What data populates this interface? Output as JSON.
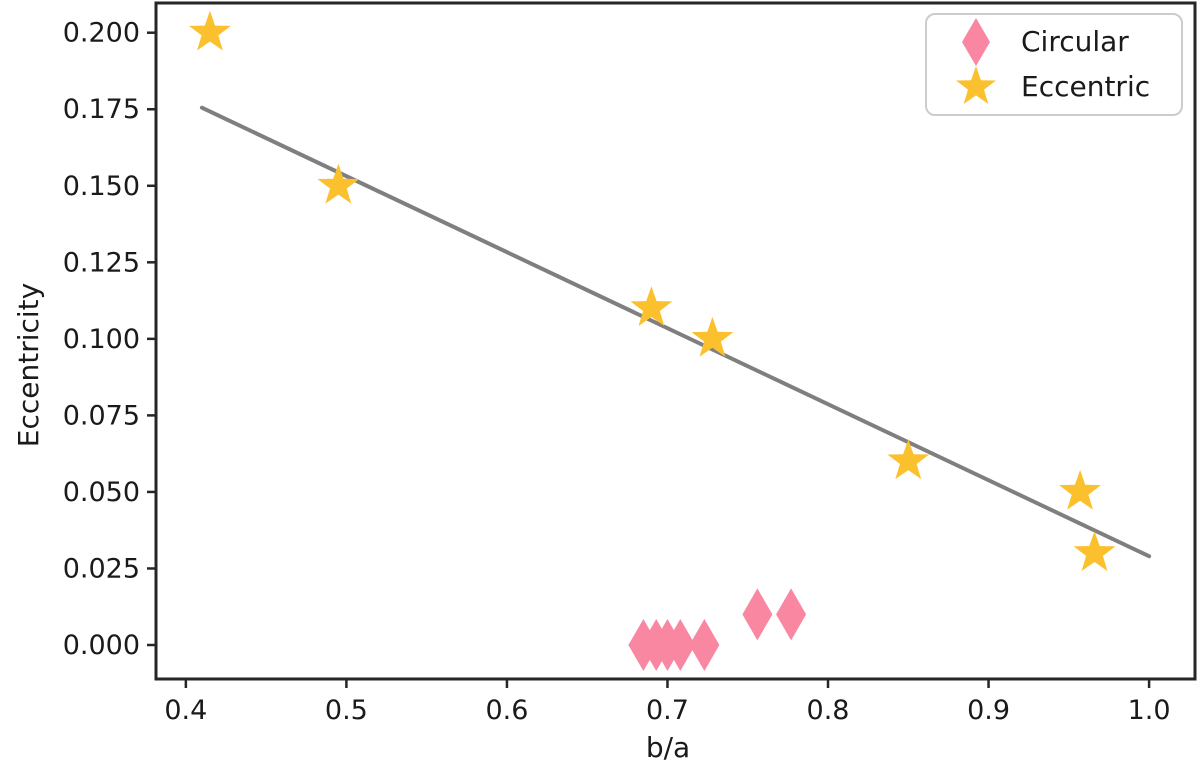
{
  "figure": {
    "background": "#ffffff",
    "spine_color": "#262626",
    "tick_color": "#262626",
    "label_color": "#1a1a1a",
    "legend_border_color": "#cccccc"
  },
  "chart_data": {
    "type": "scatter",
    "title": "",
    "xlabel": "b/a",
    "ylabel": "Eccentricity",
    "xlim": [
      0.3814,
      1.0286
    ],
    "ylim": [
      -0.0111,
      0.2097
    ],
    "grid": false,
    "legend_position": "upper right",
    "x_ticks": [
      0.4,
      0.5,
      0.6,
      0.7,
      0.8,
      0.9,
      1.0
    ],
    "x_tick_labels": [
      "0.4",
      "0.5",
      "0.6",
      "0.7",
      "0.8",
      "0.9",
      "1.0"
    ],
    "y_ticks": [
      0.0,
      0.025,
      0.05,
      0.075,
      0.1,
      0.125,
      0.15,
      0.175,
      0.2
    ],
    "y_tick_labels": [
      "0.000",
      "0.025",
      "0.050",
      "0.075",
      "0.100",
      "0.125",
      "0.150",
      "0.175",
      "0.200"
    ],
    "series": [
      {
        "name": "Circular",
        "marker": "thin-diamond",
        "color": "#F987A2",
        "points": [
          [
            0.685,
            0.0
          ],
          [
            0.693,
            0.0
          ],
          [
            0.7,
            0.0
          ],
          [
            0.708,
            0.0
          ],
          [
            0.723,
            0.0
          ],
          [
            0.756,
            0.01
          ],
          [
            0.777,
            0.01
          ]
        ]
      },
      {
        "name": "Eccentric",
        "marker": "star",
        "color": "#FBC02D",
        "points": [
          [
            0.415,
            0.2
          ],
          [
            0.495,
            0.15
          ],
          [
            0.69,
            0.11
          ],
          [
            0.728,
            0.1
          ],
          [
            0.85,
            0.06
          ],
          [
            0.957,
            0.05
          ],
          [
            0.966,
            0.03
          ]
        ]
      }
    ],
    "fit_line": {
      "x": [
        0.41,
        1.0
      ],
      "y": [
        0.1755,
        0.029
      ],
      "color": "#7f7f7f"
    }
  }
}
